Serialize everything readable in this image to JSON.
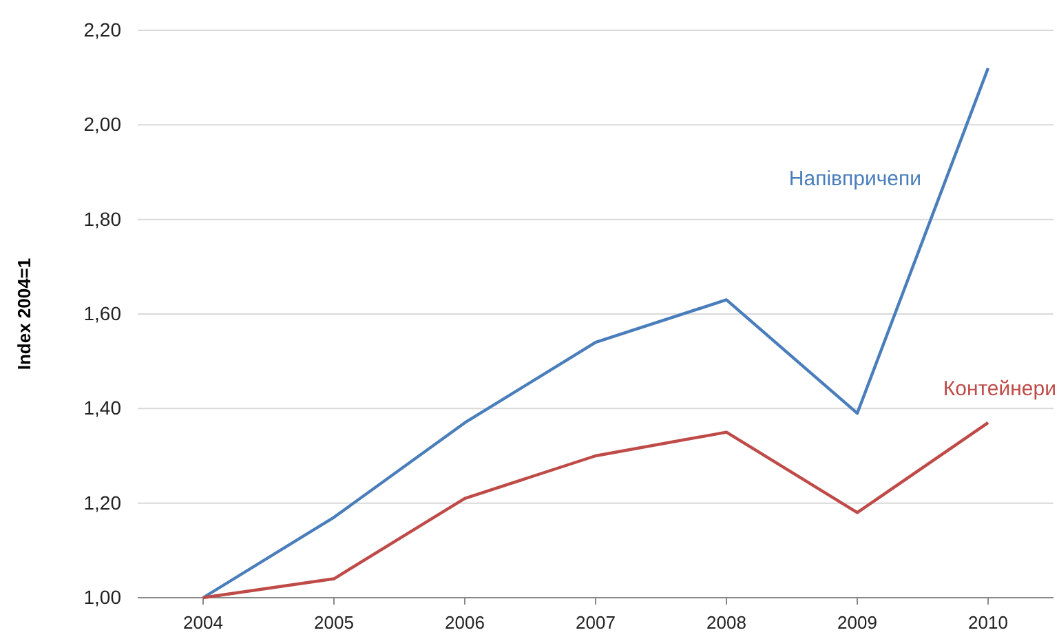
{
  "chart_data": {
    "type": "line",
    "ylabel": "Index 2004=1",
    "categories": [
      "2004",
      "2005",
      "2006",
      "2007",
      "2008",
      "2009",
      "2010"
    ],
    "series": [
      {
        "name": "Напівпричепи",
        "color": "#4a7ebb",
        "values": [
          1.0,
          1.17,
          1.37,
          1.54,
          1.63,
          1.39,
          2.12
        ]
      },
      {
        "name": "Контейнери",
        "color": "#be4b48",
        "values": [
          1.0,
          1.04,
          1.21,
          1.3,
          1.35,
          1.18,
          1.37
        ]
      }
    ],
    "ylim": [
      1,
      2.2
    ],
    "yticks": [
      {
        "value": 1,
        "label": "1,00"
      },
      {
        "value": 1.2,
        "label": "1,20"
      },
      {
        "value": 1.4,
        "label": "1,40"
      },
      {
        "value": 1.6,
        "label": "1,60"
      },
      {
        "value": 1.8,
        "label": "1,80"
      },
      {
        "value": 2,
        "label": "2,00"
      },
      {
        "value": 2.2,
        "label": "2,20"
      }
    ],
    "grid": "y",
    "legend": false,
    "marker": "none",
    "line_style": "solid"
  }
}
